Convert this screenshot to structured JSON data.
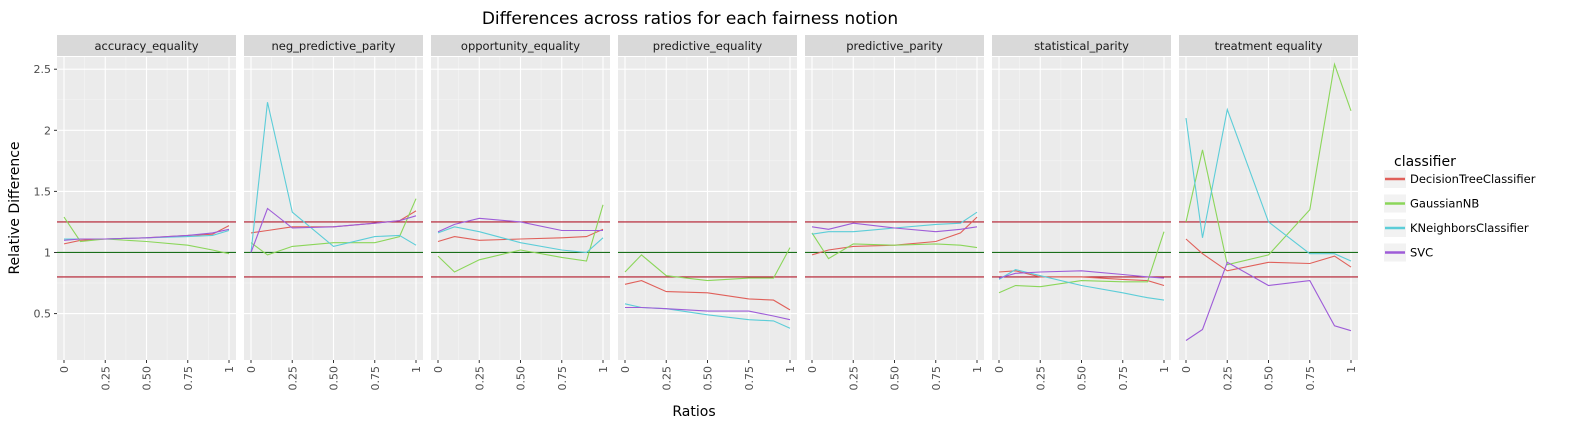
{
  "chart_data": {
    "type": "line",
    "title": "Differences across ratios for each fairness notion",
    "xlabel": "Ratios",
    "ylabel": "Relative Difference",
    "xlim": [
      0,
      1
    ],
    "ylim": [
      0.12,
      2.6
    ],
    "x_ticks": [
      0,
      0.25,
      0.5,
      0.75,
      1
    ],
    "x_tick_labels": [
      "0",
      "0.25",
      "0.50",
      "0.75",
      "1"
    ],
    "y_ticks": [
      0.5,
      1,
      1.5,
      2,
      2.5
    ],
    "y_tick_labels": [
      "0.5",
      "1",
      "1.5",
      "2",
      "2.5"
    ],
    "reference_lines": [
      {
        "y": 1.25,
        "color": "#b2182b"
      },
      {
        "y": 1.0,
        "color": "#1a6e1a"
      },
      {
        "y": 0.8,
        "color": "#b2182b"
      }
    ],
    "legend": {
      "title": "classifier",
      "position": "right",
      "entries": [
        {
          "name": "DecisionTreeClassifier",
          "color": "#E0605A"
        },
        {
          "name": "GaussianNB",
          "color": "#8BD65A"
        },
        {
          "name": "KNeighborsClassifier",
          "color": "#5CCDD8"
        },
        {
          "name": "SVC",
          "color": "#9E5CD8"
        }
      ]
    },
    "panels": [
      {
        "label": "accuracy_equality",
        "series": [
          {
            "name": "DecisionTreeClassifier",
            "x": [
              0,
              0.1,
              0.25,
              0.5,
              0.75,
              0.9,
              1
            ],
            "y": [
              1.07,
              1.1,
              1.11,
              1.12,
              1.14,
              1.15,
              1.22
            ]
          },
          {
            "name": "GaussianNB",
            "x": [
              0,
              0.1,
              0.25,
              0.5,
              0.75,
              0.9,
              1
            ],
            "y": [
              1.29,
              1.09,
              1.11,
              1.09,
              1.06,
              1.02,
              0.99
            ]
          },
          {
            "name": "KNeighborsClassifier",
            "x": [
              0,
              0.1,
              0.25,
              0.5,
              0.75,
              0.9,
              1
            ],
            "y": [
              1.11,
              1.11,
              1.11,
              1.12,
              1.13,
              1.14,
              1.18
            ]
          },
          {
            "name": "SVC",
            "x": [
              0,
              0.1,
              0.25,
              0.5,
              0.75,
              0.9,
              1
            ],
            "y": [
              1.1,
              1.11,
              1.11,
              1.12,
              1.14,
              1.16,
              1.19
            ]
          }
        ]
      },
      {
        "label": "neg_predictive_parity",
        "series": [
          {
            "name": "DecisionTreeClassifier",
            "x": [
              0,
              0.1,
              0.25,
              0.5,
              0.75,
              0.9,
              1
            ],
            "y": [
              1.16,
              1.18,
              1.21,
              1.21,
              1.24,
              1.26,
              1.34
            ]
          },
          {
            "name": "GaussianNB",
            "x": [
              0,
              0.1,
              0.25,
              0.5,
              0.75,
              0.9,
              1
            ],
            "y": [
              1.08,
              0.98,
              1.05,
              1.08,
              1.08,
              1.13,
              1.44
            ]
          },
          {
            "name": "KNeighborsClassifier",
            "x": [
              0,
              0.1,
              0.25,
              0.5,
              0.75,
              0.9,
              1
            ],
            "y": [
              1.0,
              2.23,
              1.33,
              1.05,
              1.13,
              1.14,
              1.06
            ]
          },
          {
            "name": "SVC",
            "x": [
              0,
              0.1,
              0.25,
              0.5,
              0.75,
              0.9,
              1
            ],
            "y": [
              1.0,
              1.36,
              1.2,
              1.21,
              1.24,
              1.26,
              1.3
            ]
          }
        ]
      },
      {
        "label": "opportunity_equality",
        "series": [
          {
            "name": "DecisionTreeClassifier",
            "x": [
              0,
              0.1,
              0.25,
              0.5,
              0.75,
              0.9,
              1
            ],
            "y": [
              1.09,
              1.13,
              1.1,
              1.11,
              1.12,
              1.13,
              1.19
            ]
          },
          {
            "name": "GaussianNB",
            "x": [
              0,
              0.1,
              0.25,
              0.5,
              0.75,
              0.9,
              1
            ],
            "y": [
              0.97,
              0.84,
              0.94,
              1.02,
              0.96,
              0.93,
              1.39
            ]
          },
          {
            "name": "KNeighborsClassifier",
            "x": [
              0,
              0.1,
              0.25,
              0.5,
              0.75,
              0.9,
              1
            ],
            "y": [
              1.16,
              1.21,
              1.17,
              1.08,
              1.02,
              1.0,
              1.12
            ]
          },
          {
            "name": "SVC",
            "x": [
              0,
              0.1,
              0.25,
              0.5,
              0.75,
              0.9,
              1
            ],
            "y": [
              1.17,
              1.23,
              1.28,
              1.25,
              1.18,
              1.18,
              1.18
            ]
          }
        ]
      },
      {
        "label": "predictive_equality",
        "series": [
          {
            "name": "DecisionTreeClassifier",
            "x": [
              0,
              0.1,
              0.25,
              0.5,
              0.75,
              0.9,
              1
            ],
            "y": [
              0.74,
              0.77,
              0.68,
              0.67,
              0.62,
              0.61,
              0.53
            ]
          },
          {
            "name": "GaussianNB",
            "x": [
              0,
              0.1,
              0.25,
              0.5,
              0.75,
              0.9,
              1
            ],
            "y": [
              0.84,
              0.98,
              0.81,
              0.77,
              0.79,
              0.79,
              1.04
            ]
          },
          {
            "name": "KNeighborsClassifier",
            "x": [
              0,
              0.1,
              0.25,
              0.5,
              0.75,
              0.9,
              1
            ],
            "y": [
              0.58,
              0.55,
              0.54,
              0.49,
              0.45,
              0.44,
              0.38
            ]
          },
          {
            "name": "SVC",
            "x": [
              0,
              0.1,
              0.25,
              0.5,
              0.75,
              0.9,
              1
            ],
            "y": [
              0.55,
              0.55,
              0.54,
              0.52,
              0.52,
              0.48,
              0.45
            ]
          }
        ]
      },
      {
        "label": "predictive_parity",
        "series": [
          {
            "name": "DecisionTreeClassifier",
            "x": [
              0,
              0.1,
              0.25,
              0.5,
              0.75,
              0.9,
              1
            ],
            "y": [
              0.98,
              1.02,
              1.05,
              1.06,
              1.09,
              1.16,
              1.29
            ]
          },
          {
            "name": "GaussianNB",
            "x": [
              0,
              0.1,
              0.25,
              0.5,
              0.75,
              0.9,
              1
            ],
            "y": [
              1.16,
              0.95,
              1.07,
              1.06,
              1.07,
              1.06,
              1.04
            ]
          },
          {
            "name": "KNeighborsClassifier",
            "x": [
              0,
              0.1,
              0.25,
              0.5,
              0.75,
              0.9,
              1
            ],
            "y": [
              1.15,
              1.17,
              1.17,
              1.2,
              1.23,
              1.24,
              1.33
            ]
          },
          {
            "name": "SVC",
            "x": [
              0,
              0.1,
              0.25,
              0.5,
              0.75,
              0.9,
              1
            ],
            "y": [
              1.21,
              1.19,
              1.24,
              1.2,
              1.17,
              1.19,
              1.21
            ]
          }
        ]
      },
      {
        "label": "statistical_parity",
        "series": [
          {
            "name": "DecisionTreeClassifier",
            "x": [
              0,
              0.1,
              0.25,
              0.5,
              0.75,
              0.9,
              1
            ],
            "y": [
              0.84,
              0.85,
              0.8,
              0.8,
              0.78,
              0.77,
              0.73
            ]
          },
          {
            "name": "GaussianNB",
            "x": [
              0,
              0.1,
              0.25,
              0.5,
              0.75,
              0.9,
              1
            ],
            "y": [
              0.67,
              0.73,
              0.72,
              0.77,
              0.76,
              0.76,
              1.17
            ]
          },
          {
            "name": "KNeighborsClassifier",
            "x": [
              0,
              0.1,
              0.25,
              0.5,
              0.75,
              0.9,
              1
            ],
            "y": [
              0.78,
              0.86,
              0.81,
              0.73,
              0.67,
              0.63,
              0.61
            ]
          },
          {
            "name": "SVC",
            "x": [
              0,
              0.1,
              0.25,
              0.5,
              0.75,
              0.9,
              1
            ],
            "y": [
              0.79,
              0.83,
              0.84,
              0.85,
              0.82,
              0.8,
              0.79
            ]
          }
        ]
      },
      {
        "label": "treatment equality",
        "series": [
          {
            "name": "DecisionTreeClassifier",
            "x": [
              0,
              0.1,
              0.25,
              0.5,
              0.75,
              0.9,
              1
            ],
            "y": [
              1.11,
              0.99,
              0.85,
              0.92,
              0.91,
              0.97,
              0.88
            ]
          },
          {
            "name": "GaussianNB",
            "x": [
              0,
              0.1,
              0.25,
              0.5,
              0.75,
              0.9,
              1
            ],
            "y": [
              1.25,
              1.84,
              0.9,
              0.98,
              1.35,
              2.54,
              2.16
            ]
          },
          {
            "name": "KNeighborsClassifier",
            "x": [
              0,
              0.05,
              0.1,
              0.25,
              0.5,
              0.75,
              0.9,
              1
            ],
            "y": [
              2.1,
              1.6,
              1.12,
              2.17,
              1.25,
              0.99,
              0.99,
              0.93
            ]
          },
          {
            "name": "SVC",
            "x": [
              0,
              0.1,
              0.25,
              0.5,
              0.75,
              0.9,
              1
            ],
            "y": [
              0.28,
              0.37,
              0.92,
              0.73,
              0.77,
              0.4,
              0.36
            ]
          }
        ]
      }
    ]
  }
}
